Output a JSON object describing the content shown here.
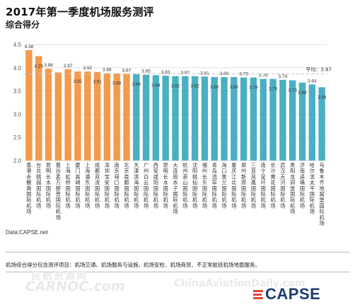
{
  "title": "2017年第一季度机场服务测评",
  "subtitle": "综合得分",
  "source": "Data:CAPSE.net",
  "note": "机场综合得分包含测评项目：机场交通、机场服务与设施、机场安检、机场商贸、不正常航班机场地面服务。",
  "watermark": {
    "cn": "民航资源网",
    "en": "CARNOC.com",
    "site": "ChinaAviationDaily.com"
  },
  "logo_text": "CAPSE",
  "colors": {
    "orange": "#f39a4c",
    "blue": "#4bafc3",
    "avg_line": "#c8c8c8",
    "grid": "#e3e3e3",
    "axis_text": "#555555",
    "label_text": "#333333",
    "logo_red": "#e2453a",
    "logo_navy": "#1f3c6e"
  },
  "chart_data": {
    "type": "bar",
    "title": "2017年第一季度机场服务测评",
    "subtitle": "综合得分",
    "ylim": [
      2.0,
      4.5
    ],
    "yticks": [
      "2.0",
      "2.5",
      "3.0",
      "3.5",
      "4.0",
      "4.5"
    ],
    "average": {
      "label": "平均：3.87",
      "value": 3.87
    },
    "categories": [
      "香港赤鱲角国际机场",
      "台北桃园国际机场",
      "昆明长水国际机场",
      "曼谷素万那普国际机场",
      "上海虹桥国际机场",
      "厦门高崎国际机场",
      "上海浦东国际机场",
      "成都双流国际机场",
      "深圳宝安国际机场",
      "南京禄口国际机场",
      "北京首都国际机场",
      "天津滨海国际机场",
      "广州白云国际机场",
      "西安咸阳国际机场",
      "昆明长水国际机场",
      "大连周水子国际机场",
      "杭州萧山国际机场",
      "沈阳桃仙国际机场",
      "福州长乐国际机场",
      "青岛流亭国际机场",
      "海口美兰国际机场",
      "重庆江北国际机场",
      "郑州新郑国际机场",
      "三亚凤凰国际机场",
      "南宁吴圩国际机场",
      "长沙黄花国际机场",
      "武汉天河国际机场",
      "贵阳龙洞堡国际机场",
      "济南遥墙国际机场",
      "哈尔滨太平国际机场",
      "乌鲁木齐地窝堡国际机场"
    ],
    "values": [
      4.38,
      4.25,
      3.98,
      3.9,
      3.97,
      3.92,
      3.92,
      3.91,
      3.88,
      3.88,
      3.87,
      3.86,
      3.85,
      3.84,
      3.83,
      3.82,
      3.82,
      3.82,
      3.81,
      3.8,
      3.8,
      3.8,
      3.79,
      3.79,
      3.76,
      3.76,
      3.74,
      3.73,
      3.68,
      3.64,
      3.58
    ],
    "labels": [
      "4.38",
      "4.25",
      "3.98",
      "",
      "3.97",
      "3.92",
      "3.92",
      "3.91",
      "3.88",
      "3.88",
      "3.87",
      "3.86",
      "3.85",
      "3.84",
      "3.83",
      "3.82",
      "3.82",
      "3.82",
      "3.81",
      "3.80",
      "3.80",
      "3.80",
      "3.79",
      "3.79",
      "3.76",
      "3.76",
      "3.74",
      "3.73",
      "3.68",
      "3.64",
      "3.58"
    ],
    "label_placement": [
      "above",
      "below",
      "above",
      "above",
      "above",
      "below",
      "above",
      "below",
      "above",
      "below",
      "above",
      "below",
      "above",
      "below",
      "above",
      "below",
      "above",
      "below",
      "above",
      "below",
      "above",
      "below",
      "above",
      "below",
      "above",
      "below",
      "above",
      "below",
      "below",
      "above",
      "below"
    ],
    "series_colors": [
      "orange",
      "orange",
      "orange",
      "orange",
      "orange",
      "orange",
      "orange",
      "orange",
      "orange",
      "orange",
      "orange",
      "blue",
      "blue",
      "blue",
      "blue",
      "blue",
      "blue",
      "blue",
      "blue",
      "blue",
      "blue",
      "blue",
      "blue",
      "blue",
      "blue",
      "blue",
      "blue",
      "blue",
      "blue",
      "blue",
      "blue"
    ],
    "grid": true,
    "legend": "none"
  }
}
